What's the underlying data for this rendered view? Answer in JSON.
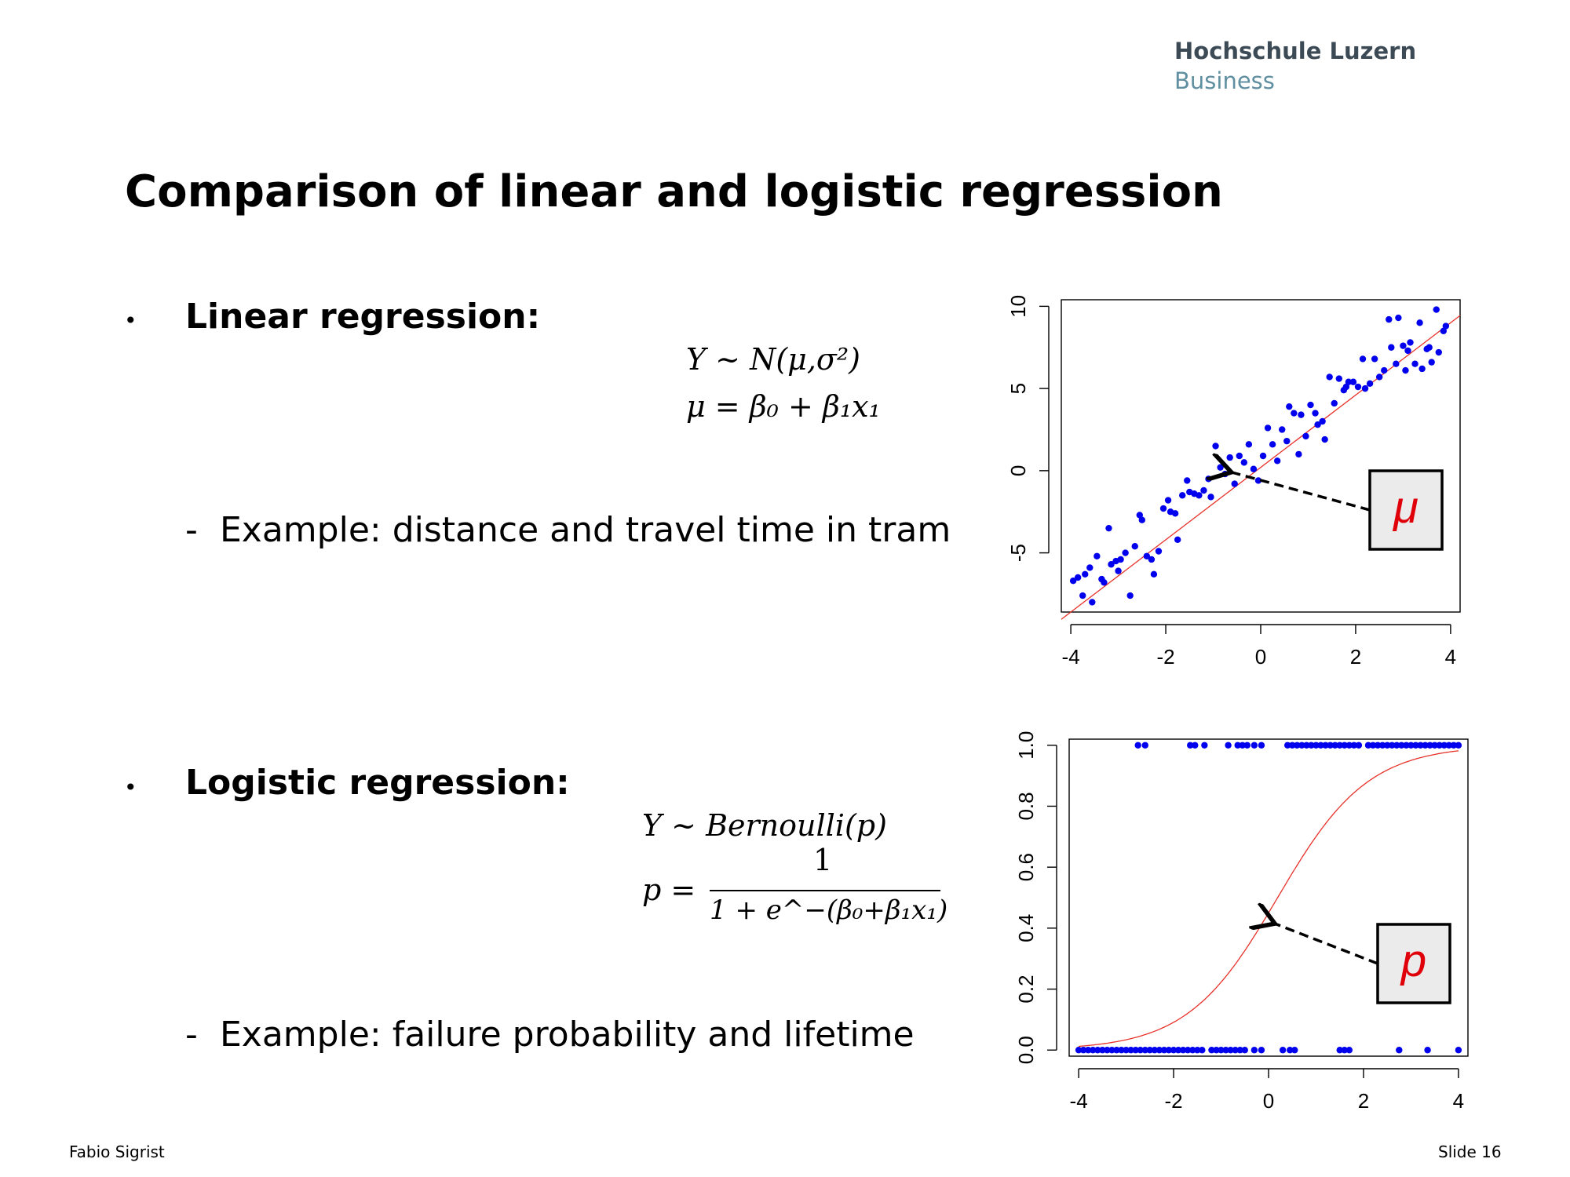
{
  "header": {
    "institution_line1": "Hochschule Luzern",
    "institution_line2": "Business"
  },
  "slide": {
    "title": "Comparison of linear and logistic regression",
    "bullet_char": "•",
    "linear": {
      "heading": "Linear regression:",
      "formula_line1": "Y ~ N(μ,σ²)",
      "formula_line2": "μ = β₀ + β₁x₁",
      "example_dash": "-",
      "example": "Example: distance and travel time in tram"
    },
    "logistic": {
      "heading": "Logistic regression:",
      "formula_line1": "Y ~ Bernoulli(p)",
      "formula_p": "p =",
      "formula_numerator": "1",
      "formula_denominator": "1 + e^−(β₀+β₁x₁)",
      "example_dash": "-",
      "example": "Example: failure probability and lifetime"
    }
  },
  "footer": {
    "author": "Fabio Sigrist",
    "slide_number": "Slide 16"
  },
  "chart_data": [
    {
      "type": "scatter",
      "title": "",
      "xlabel": "",
      "ylabel": "",
      "xlim": [
        -4.2,
        4.2
      ],
      "ylim": [
        -8.6,
        10.4
      ],
      "x_ticks": [
        "-4",
        "-2",
        "0",
        "2",
        "4"
      ],
      "x_tick_values": [
        -4,
        -2,
        0,
        2,
        4
      ],
      "y_ticks": [
        "-5",
        "0",
        "5",
        "10"
      ],
      "y_tick_values": [
        -5,
        0,
        5,
        10
      ],
      "grid": false,
      "point_color": "#0000ee",
      "line_color": "#e8312a",
      "fit_line": {
        "intercept": 0.2,
        "slope": 2.2
      },
      "annotation": {
        "label": "μ",
        "points_to": [
          -0.75,
          0.0
        ],
        "color": "#e0000a"
      },
      "points": [
        [
          -3.95,
          -6.7
        ],
        [
          -3.85,
          -6.5
        ],
        [
          -3.75,
          -7.6
        ],
        [
          -3.7,
          -6.3
        ],
        [
          -3.6,
          -5.9
        ],
        [
          -3.55,
          -8.0
        ],
        [
          -3.45,
          -5.2
        ],
        [
          -3.35,
          -6.6
        ],
        [
          -3.3,
          -6.8
        ],
        [
          -3.2,
          -3.5
        ],
        [
          -3.15,
          -5.7
        ],
        [
          -3.05,
          -5.5
        ],
        [
          -3.0,
          -6.1
        ],
        [
          -2.95,
          -5.4
        ],
        [
          -2.85,
          -5.0
        ],
        [
          -2.75,
          -7.6
        ],
        [
          -2.65,
          -4.6
        ],
        [
          -2.55,
          -2.7
        ],
        [
          -2.5,
          -3.0
        ],
        [
          -2.4,
          -5.2
        ],
        [
          -2.3,
          -5.4
        ],
        [
          -2.25,
          -6.3
        ],
        [
          -2.15,
          -4.9
        ],
        [
          -2.05,
          -2.3
        ],
        [
          -1.95,
          -1.8
        ],
        [
          -1.9,
          -2.5
        ],
        [
          -1.8,
          -2.6
        ],
        [
          -1.75,
          -4.2
        ],
        [
          -1.65,
          -1.5
        ],
        [
          -1.55,
          -0.6
        ],
        [
          -1.5,
          -1.3
        ],
        [
          -1.4,
          -1.4
        ],
        [
          -1.3,
          -1.5
        ],
        [
          -1.2,
          -1.2
        ],
        [
          -1.1,
          -0.5
        ],
        [
          -1.05,
          -1.6
        ],
        [
          -0.95,
          1.5
        ],
        [
          -0.85,
          0.2
        ],
        [
          -0.75,
          -0.2
        ],
        [
          -0.65,
          0.8
        ],
        [
          -0.55,
          -0.8
        ],
        [
          -0.45,
          0.9
        ],
        [
          -0.35,
          0.5
        ],
        [
          -0.25,
          1.6
        ],
        [
          -0.15,
          0.1
        ],
        [
          -0.05,
          -0.6
        ],
        [
          0.05,
          0.9
        ],
        [
          0.15,
          2.6
        ],
        [
          0.25,
          1.6
        ],
        [
          0.35,
          0.6
        ],
        [
          0.45,
          2.5
        ],
        [
          0.55,
          1.8
        ],
        [
          0.6,
          3.9
        ],
        [
          0.7,
          3.5
        ],
        [
          0.8,
          1.0
        ],
        [
          0.85,
          3.4
        ],
        [
          0.95,
          2.1
        ],
        [
          1.05,
          4.0
        ],
        [
          1.15,
          3.5
        ],
        [
          1.2,
          2.8
        ],
        [
          1.3,
          3.0
        ],
        [
          1.35,
          1.9
        ],
        [
          1.45,
          5.7
        ],
        [
          1.55,
          4.1
        ],
        [
          1.65,
          5.6
        ],
        [
          1.75,
          4.9
        ],
        [
          1.8,
          5.1
        ],
        [
          1.85,
          5.4
        ],
        [
          1.95,
          5.4
        ],
        [
          2.05,
          5.1
        ],
        [
          2.15,
          6.8
        ],
        [
          2.2,
          5.0
        ],
        [
          2.3,
          5.3
        ],
        [
          2.4,
          6.8
        ],
        [
          2.5,
          5.7
        ],
        [
          2.6,
          6.1
        ],
        [
          2.7,
          9.2
        ],
        [
          2.75,
          7.5
        ],
        [
          2.85,
          6.5
        ],
        [
          2.9,
          9.3
        ],
        [
          3.0,
          7.6
        ],
        [
          3.05,
          6.1
        ],
        [
          3.1,
          7.3
        ],
        [
          3.15,
          7.8
        ],
        [
          3.25,
          6.5
        ],
        [
          3.35,
          9.0
        ],
        [
          3.4,
          6.2
        ],
        [
          3.5,
          7.4
        ],
        [
          3.55,
          7.5
        ],
        [
          3.6,
          6.6
        ],
        [
          3.7,
          9.8
        ],
        [
          3.75,
          7.2
        ],
        [
          3.85,
          8.5
        ],
        [
          3.9,
          8.8
        ]
      ]
    },
    {
      "type": "scatter",
      "title": "",
      "xlabel": "",
      "ylabel": "",
      "xlim": [
        -4.2,
        4.2
      ],
      "ylim": [
        -0.02,
        1.02
      ],
      "x_ticks": [
        "-4",
        "-2",
        "0",
        "2",
        "4"
      ],
      "x_tick_values": [
        -4,
        -2,
        0,
        2,
        4
      ],
      "y_ticks": [
        "0.0",
        "0.2",
        "0.4",
        "0.6",
        "0.8",
        "1.0"
      ],
      "y_tick_values": [
        0,
        0.2,
        0.4,
        0.6,
        0.8,
        1.0
      ],
      "grid": false,
      "point_color": "#0000ee",
      "line_color": "#e8312a",
      "logistic_curve": {
        "beta0": -0.2,
        "beta1": 1.05
      },
      "annotation": {
        "label": "p",
        "points_to": [
          0.0,
          0.42
        ],
        "color": "#e0000a"
      },
      "points_y1_x": [
        -2.75,
        -2.6,
        -1.65,
        -1.55,
        -1.35,
        -0.85,
        -0.65,
        -0.55,
        -0.45,
        -0.3,
        -0.15,
        0.4,
        0.5,
        0.6,
        0.7,
        0.8,
        0.9,
        1.0,
        1.1,
        1.2,
        1.3,
        1.4,
        1.5,
        1.6,
        1.7,
        1.8,
        1.9,
        2.1,
        2.2,
        2.3,
        2.4,
        2.5,
        2.6,
        2.7,
        2.8,
        2.9,
        3.0,
        3.1,
        3.2,
        3.3,
        3.4,
        3.5,
        3.6,
        3.7,
        3.8,
        3.9,
        4.0
      ],
      "points_y0_x": [
        -4.0,
        -3.9,
        -3.8,
        -3.7,
        -3.6,
        -3.5,
        -3.4,
        -3.3,
        -3.2,
        -3.1,
        -3.0,
        -2.9,
        -2.8,
        -2.7,
        -2.6,
        -2.5,
        -2.4,
        -2.3,
        -2.2,
        -2.1,
        -2.0,
        -1.9,
        -1.8,
        -1.7,
        -1.6,
        -1.5,
        -1.4,
        -1.2,
        -1.1,
        -1.0,
        -0.9,
        -0.8,
        -0.7,
        -0.6,
        -0.5,
        -0.3,
        -0.15,
        0.3,
        0.45,
        0.55,
        1.5,
        1.6,
        1.7,
        2.75,
        3.35,
        4.0
      ]
    }
  ]
}
